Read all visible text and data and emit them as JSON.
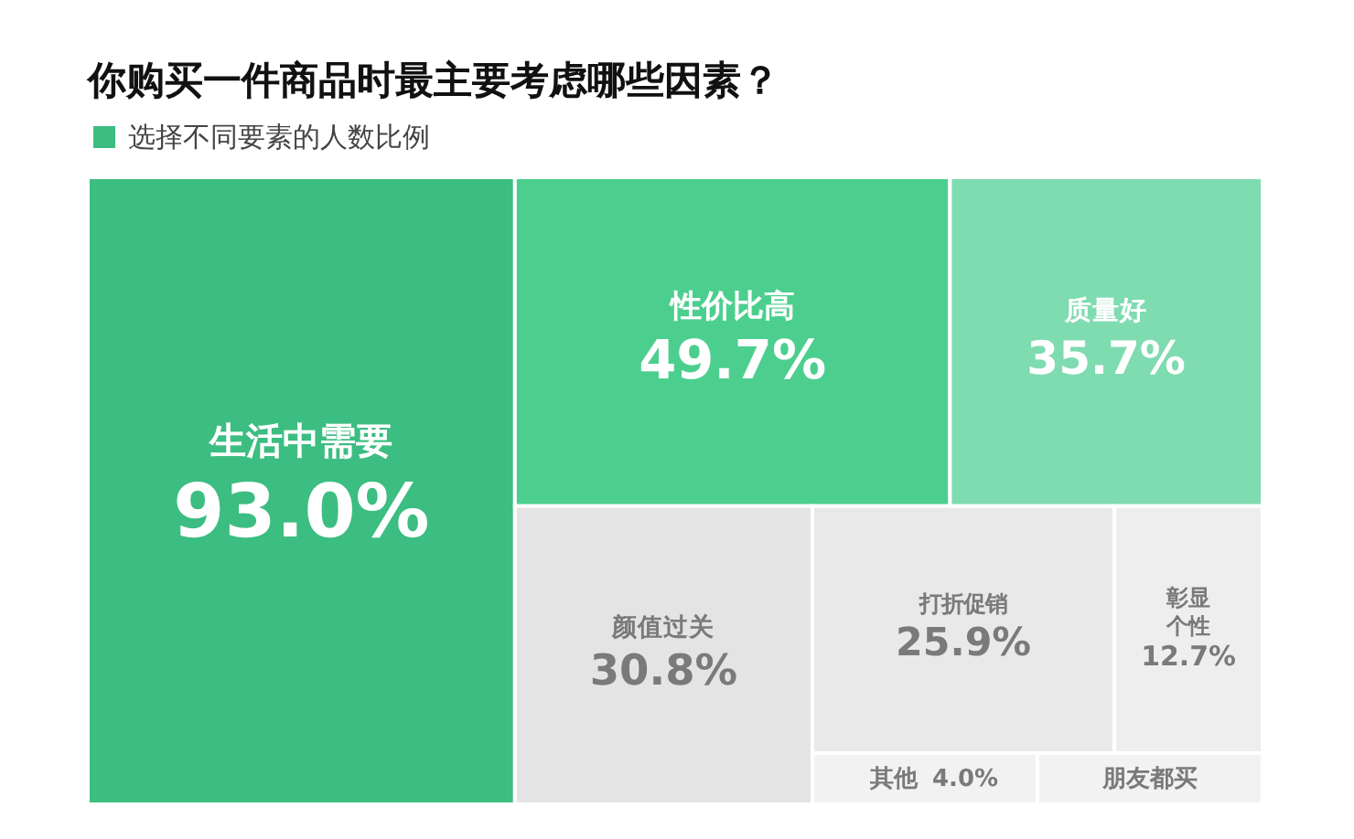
{
  "chart_data": {
    "type": "other",
    "title": "你购买一件商品时最主要考虑哪些因素？",
    "subtitle": "选择不同要素的人数比例",
    "categories": [
      "生活中需要",
      "性价比高",
      "质量好",
      "颜值过关",
      "打折促销",
      "彰显个性",
      "其他",
      "朋友都买"
    ],
    "values": [
      93.0,
      49.7,
      35.7,
      30.8,
      25.9,
      12.7,
      4.0,
      null
    ],
    "value_labels": [
      "93.0%",
      "49.7%",
      "35.7%",
      "30.8%",
      "25.9%",
      "12.7%",
      "4.0%",
      null
    ],
    "colors": [
      "#3cbd81",
      "#4ccf8e",
      "#7fdbb0",
      "#e4e4e4",
      "#e9e9e9",
      "#eeeeee",
      "#f2f2f2",
      "#f2f2f2"
    ]
  }
}
